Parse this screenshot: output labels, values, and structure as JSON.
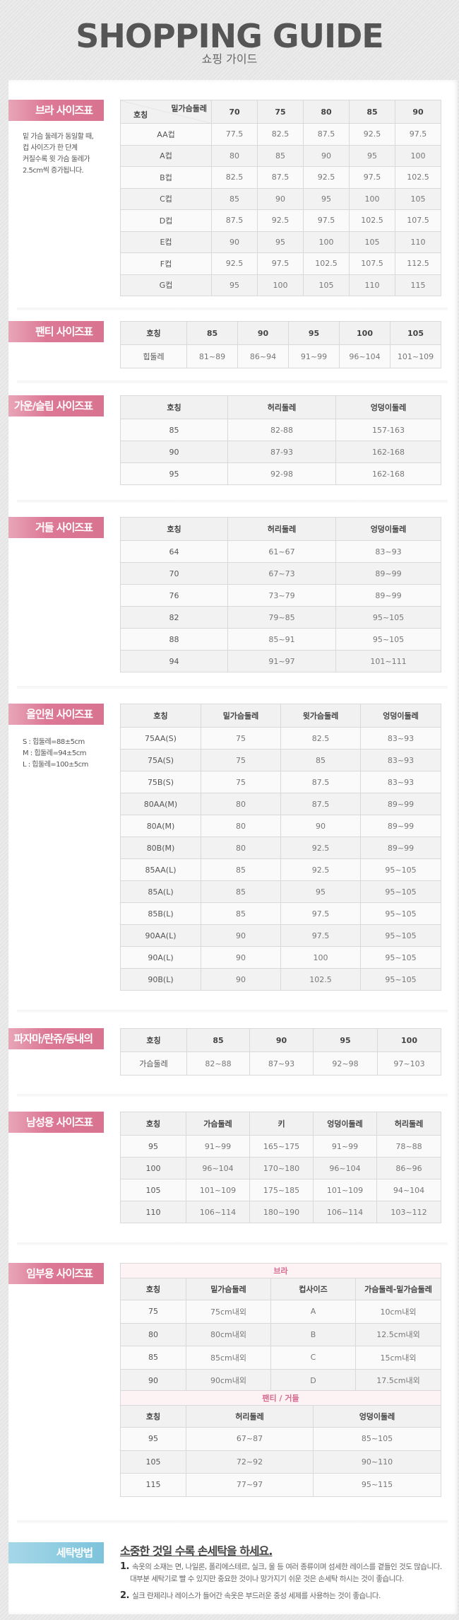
{
  "header": {
    "title": "SHOPPING GUIDE",
    "subtitle": "쇼핑 가이드"
  },
  "bra": {
    "label": "브라 사이즈표",
    "note": [
      "밑 가슴 둘레가 동일할 때,",
      "컵 사이즈가 한 단계",
      "커질수록 윗 가슴 둘레가",
      "2.5cm씩 증가됩니다."
    ],
    "corner_top": "밑가슴둘레",
    "corner_bottom": "호칭",
    "columns": [
      "70",
      "75",
      "80",
      "85",
      "90"
    ],
    "rows": [
      [
        "AA컵",
        "77.5",
        "82.5",
        "87.5",
        "92.5",
        "97.5"
      ],
      [
        "A컵",
        "80",
        "85",
        "90",
        "95",
        "100"
      ],
      [
        "B컵",
        "82.5",
        "87.5",
        "92.5",
        "97.5",
        "102.5"
      ],
      [
        "C컵",
        "85",
        "90",
        "95",
        "100",
        "105"
      ],
      [
        "D컵",
        "87.5",
        "92.5",
        "97.5",
        "102.5",
        "107.5"
      ],
      [
        "E컵",
        "90",
        "95",
        "100",
        "105",
        "110"
      ],
      [
        "F컵",
        "92.5",
        "97.5",
        "102.5",
        "107.5",
        "112.5"
      ],
      [
        "G컵",
        "95",
        "100",
        "105",
        "110",
        "115"
      ]
    ]
  },
  "panty": {
    "label": "팬티 사이즈표",
    "columns": [
      "호칭",
      "85",
      "90",
      "95",
      "100",
      "105"
    ],
    "rows": [
      [
        "힙둘레",
        "81~89",
        "86~94",
        "91~99",
        "96~104",
        "101~109"
      ]
    ]
  },
  "gown": {
    "label": "가운/슬립 사이즈표",
    "columns": [
      "호칭",
      "허리둘레",
      "엉덩이둘레"
    ],
    "rows": [
      [
        "85",
        "82-88",
        "157-163"
      ],
      [
        "90",
        "87-93",
        "162-168"
      ],
      [
        "95",
        "92-98",
        "162-168"
      ]
    ]
  },
  "girdle": {
    "label": "거들 사이즈표",
    "columns": [
      "호칭",
      "허리둘레",
      "엉덩이둘레"
    ],
    "rows": [
      [
        "64",
        "61~67",
        "83~93"
      ],
      [
        "70",
        "67~73",
        "89~99"
      ],
      [
        "76",
        "73~79",
        "89~99"
      ],
      [
        "82",
        "79~85",
        "95~105"
      ],
      [
        "88",
        "85~91",
        "95~105"
      ],
      [
        "94",
        "91~97",
        "101~111"
      ]
    ]
  },
  "allinone": {
    "label": "올인원 사이즈표",
    "note": [
      "S : 힙둘레=88±5cm",
      "M : 힙둘레=94±5cm",
      "L : 힙둘레=100±5cm"
    ],
    "columns": [
      "호칭",
      "밑가슴둘레",
      "윗가슴둘레",
      "엉덩이둘레"
    ],
    "rows": [
      [
        "75AA(S)",
        "75",
        "82.5",
        "83~93"
      ],
      [
        "75A(S)",
        "75",
        "85",
        "83~93"
      ],
      [
        "75B(S)",
        "75",
        "87.5",
        "83~93"
      ],
      [
        "80AA(M)",
        "80",
        "87.5",
        "89~99"
      ],
      [
        "80A(M)",
        "80",
        "90",
        "89~99"
      ],
      [
        "80B(M)",
        "80",
        "92.5",
        "89~99"
      ],
      [
        "85AA(L)",
        "85",
        "92.5",
        "95~105"
      ],
      [
        "85A(L)",
        "85",
        "95",
        "95~105"
      ],
      [
        "85B(L)",
        "85",
        "97.5",
        "95~105"
      ],
      [
        "90AA(L)",
        "90",
        "97.5",
        "95~105"
      ],
      [
        "90A(L)",
        "90",
        "100",
        "95~105"
      ],
      [
        "90B(L)",
        "90",
        "102.5",
        "95~105"
      ]
    ]
  },
  "pajama": {
    "label": "파자마/란쥬/동내의",
    "columns": [
      "호칭",
      "85",
      "90",
      "95",
      "100"
    ],
    "rows": [
      [
        "가슴둘레",
        "82~88",
        "87~93",
        "92~98",
        "97~103"
      ]
    ]
  },
  "men": {
    "label": "남성용 사이즈표",
    "columns": [
      "호칭",
      "가슴둘레",
      "키",
      "엉덩이둘레",
      "허리둘레"
    ],
    "rows": [
      [
        "95",
        "91~99",
        "165~175",
        "91~99",
        "78~88"
      ],
      [
        "100",
        "96~104",
        "170~180",
        "96~104",
        "86~96"
      ],
      [
        "105",
        "101~109",
        "175~185",
        "101~109",
        "94~104"
      ],
      [
        "110",
        "106~114",
        "180~190",
        "106~114",
        "103~112"
      ]
    ]
  },
  "maternity": {
    "label": "임부용 사이즈표",
    "bra_title": "브라",
    "bra_columns": [
      "호칭",
      "밑가슴둘레",
      "컵사이즈",
      "가슴둘레-밑가슴둘레"
    ],
    "bra_rows": [
      [
        "75",
        "75cm내외",
        "A",
        "10cm내외"
      ],
      [
        "80",
        "80cm내외",
        "B",
        "12.5cm내외"
      ],
      [
        "85",
        "85cm내외",
        "C",
        "15cm내외"
      ],
      [
        "90",
        "90cm내외",
        "D",
        "17.5cm내외"
      ]
    ],
    "panty_title": "팬티 / 거들",
    "panty_columns": [
      "호칭",
      "허리둘레",
      "엉덩이둘레"
    ],
    "panty_rows": [
      [
        "95",
        "67~87",
        "85~105"
      ],
      [
        "105",
        "72~92",
        "90~110"
      ],
      [
        "115",
        "77~97",
        "95~115"
      ]
    ]
  },
  "washing": {
    "label": "세탁방법",
    "heading": "소중한 것일 수록 손세탁을 하세요.",
    "items": [
      {
        "num": "1.",
        "lines": [
          "속옷의 소재는 면, 나일론, 폴리에스테르, 실크, 울 등 여러 종류이며 섬세한 레이스를 곁들인 것도 많습니다.",
          "대부분 세탁기로 빨 수 있지만 중요한 것이나 망가지기 쉬운 것은 손세탁 하시는 것이 좋습니다."
        ]
      },
      {
        "num": "2.",
        "lines": [
          "실크 란제리나 레이스가 들어간 속옷은 부드러운 중성 세제를 사용하는 것이 좋습니다."
        ]
      }
    ]
  },
  "colors": {
    "label_pink": "#dc7896",
    "label_blue": "#7cc3db",
    "subheader_pink": "#d66a90"
  }
}
